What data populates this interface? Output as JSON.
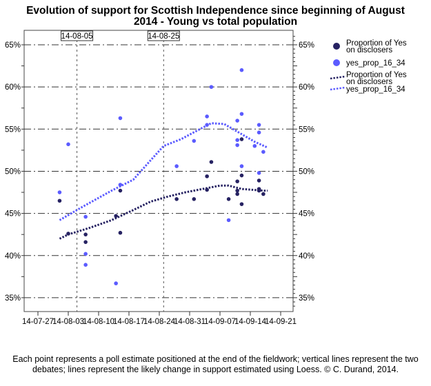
{
  "chart_data": {
    "type": "scatter",
    "title_line1": "Evolution of support for Scottish Independence since beginning of August",
    "title_line2": "2014 - Young vs total population",
    "xlabel": "",
    "ylabel": "",
    "x_ticks": [
      "14-07-27",
      "14-08-03",
      "14-08-10",
      "14-08-17",
      "14-08-24",
      "14-08-31",
      "14-09-07",
      "14-09-14",
      "14-09-21"
    ],
    "x_unit": "days since 14-07-27",
    "xlim": [
      -3,
      60
    ],
    "ylim": [
      34,
      66
    ],
    "y_ticks": [
      35,
      40,
      45,
      50,
      55,
      60,
      65
    ],
    "y_tick_labels": [
      "35%",
      "40%",
      "45%",
      "50%",
      "55%",
      "60%",
      "65%"
    ],
    "reference_lines": [
      {
        "day": 9,
        "label": "14-08-05"
      },
      {
        "day": 29,
        "label": "14-08-25"
      }
    ],
    "colors": {
      "total": "#262262",
      "young": "#5b5bff"
    },
    "legend": [
      "Proportion of Yes on disclosers",
      "yes_prop_16_34",
      "Proportion of Yes on disclosers",
      "yes_prop_16_34"
    ],
    "legend_placement": "right",
    "series": [
      {
        "name": "Proportion of Yes on disclosers",
        "kind": "points",
        "points": [
          [
            5,
            46.5
          ],
          [
            7,
            42.6
          ],
          [
            11,
            42.5
          ],
          [
            11,
            41.6
          ],
          [
            18,
            44.7
          ],
          [
            19,
            42.7
          ],
          [
            19,
            47.7
          ],
          [
            32,
            46.7
          ],
          [
            36,
            46.7
          ],
          [
            39,
            49.4
          ],
          [
            39,
            47.8
          ],
          [
            40,
            51.1
          ],
          [
            44,
            46.7
          ],
          [
            46,
            48.8
          ],
          [
            46,
            47.7
          ],
          [
            46,
            47.3
          ],
          [
            47,
            49.5
          ],
          [
            47,
            53.8
          ],
          [
            47,
            46.1
          ],
          [
            51,
            48.9
          ],
          [
            51,
            47.9
          ],
          [
            51,
            47.7
          ],
          [
            52,
            47.3
          ]
        ]
      },
      {
        "name": "yes_prop_16_34",
        "kind": "points",
        "points": [
          [
            5,
            47.5
          ],
          [
            7,
            53.2
          ],
          [
            11,
            44.6
          ],
          [
            11,
            40.2
          ],
          [
            11,
            38.9
          ],
          [
            18,
            36.7
          ],
          [
            19,
            56.3
          ],
          [
            19,
            48.4
          ],
          [
            32,
            50.6
          ],
          [
            36,
            53.6
          ],
          [
            39,
            56.5
          ],
          [
            39,
            55.5
          ],
          [
            40,
            60.0
          ],
          [
            44,
            44.2
          ],
          [
            46,
            56.0
          ],
          [
            46,
            53.7
          ],
          [
            46,
            53.1
          ],
          [
            47,
            62.0
          ],
          [
            47,
            56.8
          ],
          [
            47,
            50.6
          ],
          [
            50,
            53.0
          ],
          [
            51,
            55.5
          ],
          [
            51,
            54.6
          ],
          [
            51,
            49.8
          ],
          [
            52,
            52.3
          ]
        ]
      },
      {
        "name": "Proportion of Yes on disclosers",
        "kind": "loess",
        "points": [
          [
            5,
            42.0
          ],
          [
            7,
            42.5
          ],
          [
            12,
            43.3
          ],
          [
            17,
            44.2
          ],
          [
            22,
            45.4
          ],
          [
            26,
            46.4
          ],
          [
            30,
            47.0
          ],
          [
            34,
            47.5
          ],
          [
            38,
            47.9
          ],
          [
            42,
            48.3
          ],
          [
            44,
            48.3
          ],
          [
            47,
            47.9
          ],
          [
            52,
            47.7
          ],
          [
            53,
            47.7
          ]
        ]
      },
      {
        "name": "yes_prop_16_34",
        "kind": "loess",
        "points": [
          [
            5,
            44.2
          ],
          [
            10,
            45.7
          ],
          [
            17,
            47.7
          ],
          [
            22,
            49.0
          ],
          [
            26,
            51.3
          ],
          [
            29,
            53.0
          ],
          [
            33,
            53.8
          ],
          [
            37,
            54.9
          ],
          [
            40,
            55.7
          ],
          [
            43,
            55.6
          ],
          [
            47,
            54.4
          ],
          [
            50,
            53.5
          ],
          [
            53,
            52.8
          ]
        ]
      }
    ]
  },
  "footer": "Each point represents a poll estimate positioned at the end of the fieldwork; vertical lines represent the two debates; lines represent the likely change in support estimated using Loess. © C. Durand, 2014."
}
